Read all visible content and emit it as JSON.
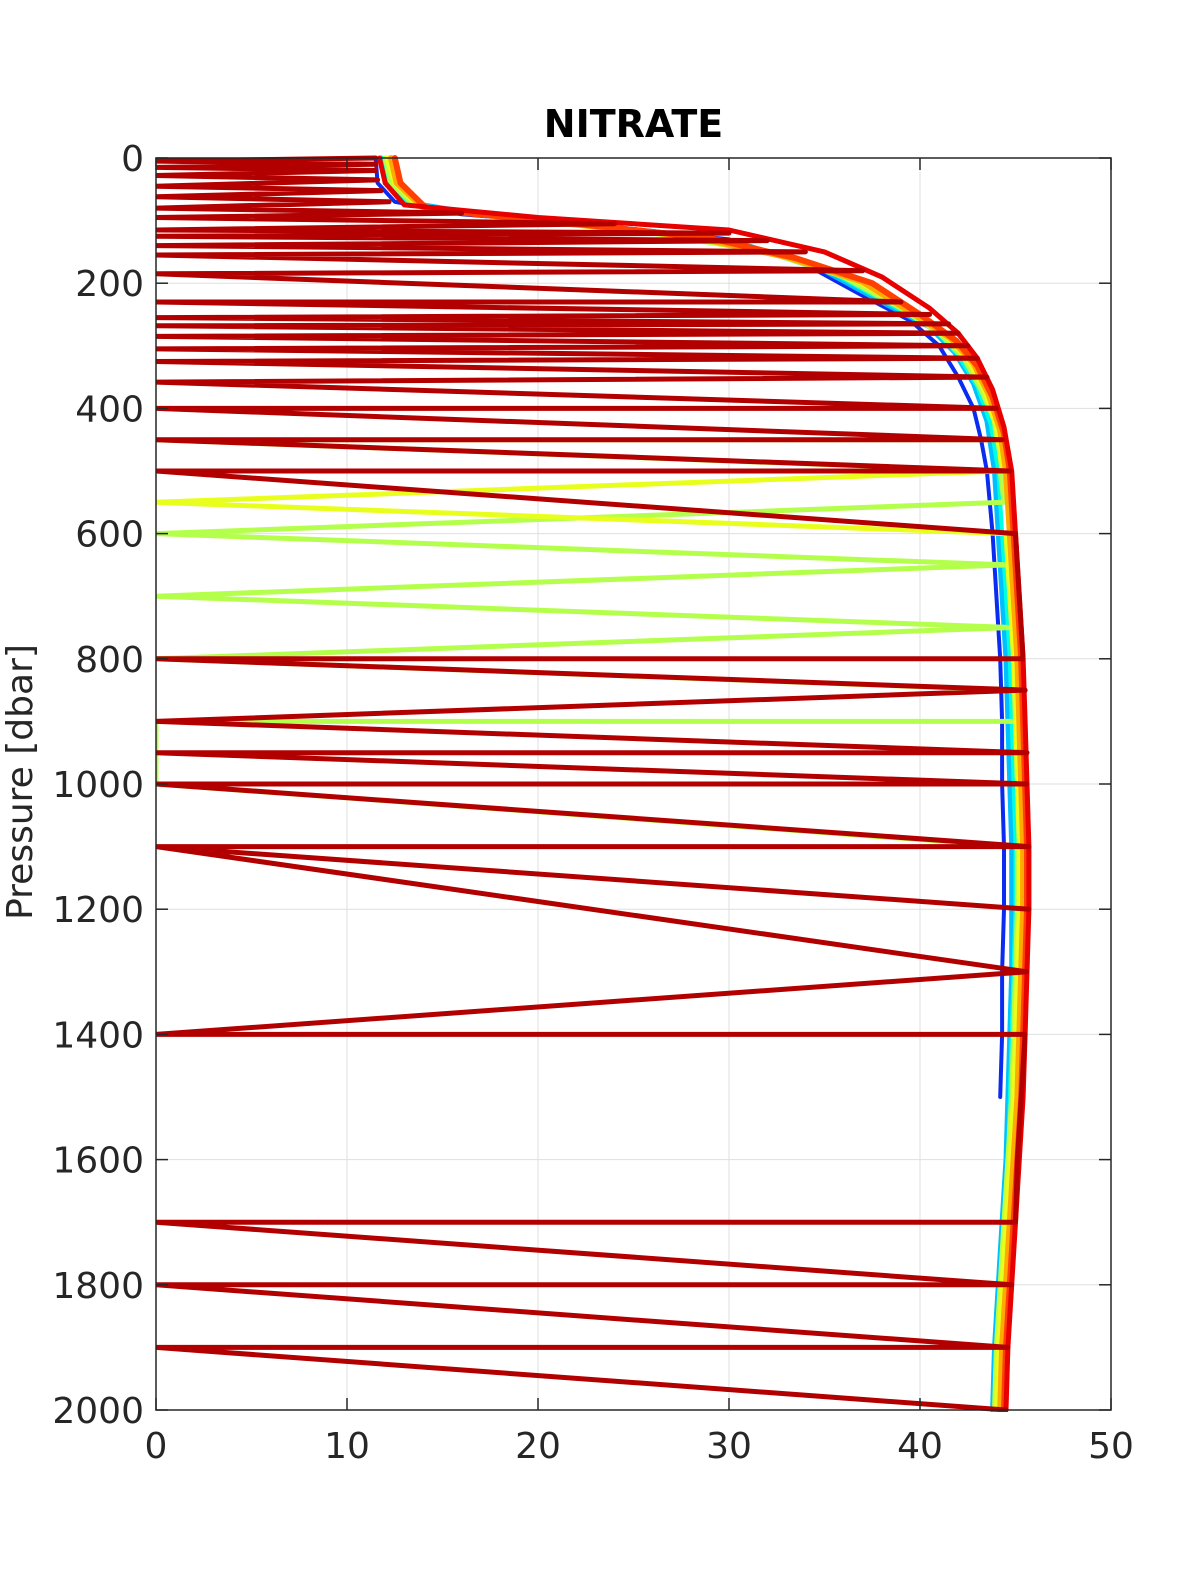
{
  "chart_data": {
    "type": "line",
    "title": "NITRATE",
    "xlabel": "",
    "ylabel": "Pressure [dbar]",
    "xlim": [
      0,
      50
    ],
    "ylim": [
      0,
      2000
    ],
    "y_reversed": true,
    "grid": true,
    "legend": "none",
    "x_ticks": [
      "0",
      "10",
      "20",
      "30",
      "40",
      "50"
    ],
    "y_ticks": [
      "0",
      "200",
      "400",
      "600",
      "800",
      "1000",
      "1200",
      "1400",
      "1600",
      "1800",
      "2000"
    ],
    "x_tick_values": [
      0,
      10,
      20,
      30,
      40,
      50
    ],
    "y_tick_values": [
      0,
      200,
      400,
      600,
      800,
      1000,
      1200,
      1400,
      1600,
      1800,
      2000
    ],
    "colors": {
      "grid": "#dfdfdf",
      "axis": "#262626"
    },
    "series": [
      {
        "color": "#0a2cf0",
        "width": 4,
        "points": [
          [
            11.5,
            0
          ],
          [
            11.6,
            40
          ],
          [
            12.5,
            70
          ],
          [
            16,
            90
          ],
          [
            24,
            110
          ],
          [
            30,
            130
          ],
          [
            34,
            170
          ],
          [
            37,
            220
          ],
          [
            39.5,
            260
          ],
          [
            41,
            300
          ],
          [
            42,
            350
          ],
          [
            42.8,
            400
          ],
          [
            43.2,
            450
          ],
          [
            43.5,
            500
          ],
          [
            43.8,
            600
          ],
          [
            44.0,
            700
          ],
          [
            44.2,
            800
          ],
          [
            44.3,
            900
          ],
          [
            44.3,
            1000
          ],
          [
            44.4,
            1100
          ],
          [
            44.4,
            1200
          ],
          [
            44.3,
            1300
          ],
          [
            44.3,
            1400
          ],
          [
            44.2,
            1500
          ]
        ]
      },
      {
        "color": "#00bfff",
        "width": 5,
        "points": [
          [
            11.8,
            0
          ],
          [
            12,
            40
          ],
          [
            13,
            70
          ],
          [
            17,
            90
          ],
          [
            25,
            115
          ],
          [
            31,
            140
          ],
          [
            35,
            180
          ],
          [
            38,
            230
          ],
          [
            40.5,
            270
          ],
          [
            41.8,
            310
          ],
          [
            42.8,
            360
          ],
          [
            43.5,
            420
          ],
          [
            43.9,
            500
          ],
          [
            44.1,
            600
          ],
          [
            44.3,
            700
          ],
          [
            44.5,
            800
          ],
          [
            44.6,
            900
          ],
          [
            44.7,
            1000
          ],
          [
            44.8,
            1100
          ],
          [
            44.8,
            1200
          ],
          [
            44.8,
            1300
          ],
          [
            44.7,
            1400
          ],
          [
            44.6,
            1500
          ],
          [
            44.5,
            1600
          ],
          [
            44.3,
            1700
          ],
          [
            44.1,
            1800
          ],
          [
            43.9,
            1900
          ],
          [
            43.8,
            2000
          ]
        ]
      },
      {
        "color": "#00ffe0",
        "width": 4,
        "points": [
          [
            11.9,
            0
          ],
          [
            12.2,
            40
          ],
          [
            13.2,
            75
          ],
          [
            18,
            95
          ],
          [
            26,
            118
          ],
          [
            31.5,
            145
          ],
          [
            35.5,
            185
          ],
          [
            38.5,
            235
          ],
          [
            40.8,
            275
          ],
          [
            42,
            315
          ],
          [
            43,
            365
          ],
          [
            43.7,
            425
          ],
          [
            44.1,
            500
          ],
          [
            44.3,
            600
          ],
          [
            44.5,
            700
          ],
          [
            44.7,
            800
          ],
          [
            44.8,
            900
          ],
          [
            44.9,
            1000
          ],
          [
            45.0,
            1100
          ],
          [
            45.0,
            1200
          ],
          [
            44.9,
            1300
          ],
          [
            44.8,
            1400
          ],
          [
            44.7,
            1500
          ],
          [
            44.6,
            1600
          ],
          [
            44.4,
            1700
          ],
          [
            44.2,
            1800
          ],
          [
            44.0,
            1900
          ],
          [
            43.9,
            2000
          ]
        ]
      },
      {
        "color": "#b4ff4b",
        "width": 5,
        "points": [
          [
            12,
            0
          ],
          [
            12.3,
            40
          ],
          [
            13.5,
            75
          ],
          [
            18,
            95
          ],
          [
            26,
            120
          ],
          [
            32,
            150
          ],
          [
            36,
            190
          ],
          [
            39,
            240
          ],
          [
            41,
            280
          ],
          [
            42.3,
            320
          ],
          [
            43.2,
            370
          ],
          [
            43.9,
            420
          ],
          [
            44.0,
            450
          ],
          [
            0,
            450
          ],
          [
            44.2,
            500
          ],
          [
            44.4,
            550
          ],
          [
            0,
            600
          ],
          [
            44.6,
            650
          ],
          [
            0,
            700
          ],
          [
            44.8,
            750
          ],
          [
            0,
            800
          ],
          [
            45.0,
            850
          ],
          [
            45.0,
            900
          ],
          [
            0,
            900
          ],
          [
            0,
            1000
          ],
          [
            45.1,
            1100
          ],
          [
            45.1,
            1200
          ],
          [
            45.0,
            1300
          ],
          [
            44.9,
            1400
          ],
          [
            44.8,
            1500
          ],
          [
            44.6,
            1600
          ],
          [
            44.4,
            1700
          ],
          [
            44.2,
            1800
          ],
          [
            44.0,
            1900
          ],
          [
            43.9,
            2000
          ]
        ]
      },
      {
        "color": "#e8ff1e",
        "width": 5,
        "points": [
          [
            12.1,
            0
          ],
          [
            12.5,
            40
          ],
          [
            13.8,
            78
          ],
          [
            19,
            98
          ],
          [
            27,
            122
          ],
          [
            32.5,
            152
          ],
          [
            36.5,
            192
          ],
          [
            39.3,
            242
          ],
          [
            41.3,
            282
          ],
          [
            42.5,
            322
          ],
          [
            43.4,
            372
          ],
          [
            44.0,
            430
          ],
          [
            44.3,
            500
          ],
          [
            0,
            550
          ],
          [
            44.5,
            600
          ],
          [
            44.7,
            700
          ],
          [
            44.9,
            800
          ],
          [
            45.0,
            900
          ],
          [
            45.1,
            1000
          ],
          [
            45.2,
            1100
          ],
          [
            45.2,
            1200
          ],
          [
            45.1,
            1300
          ],
          [
            45.0,
            1400
          ],
          [
            44.9,
            1500
          ],
          [
            44.7,
            1600
          ],
          [
            44.5,
            1700
          ],
          [
            44.3,
            1800
          ],
          [
            44.1,
            1900
          ],
          [
            44.0,
            2000
          ]
        ]
      },
      {
        "color": "#ffaa00",
        "width": 6,
        "points": [
          [
            12.3,
            0
          ],
          [
            12.6,
            40
          ],
          [
            14,
            80
          ],
          [
            20,
            100
          ],
          [
            28,
            125
          ],
          [
            33,
            158
          ],
          [
            37,
            198
          ],
          [
            39.6,
            248
          ],
          [
            41.6,
            288
          ],
          [
            42.8,
            328
          ],
          [
            43.6,
            378
          ],
          [
            44.2,
            435
          ],
          [
            44.5,
            500
          ],
          [
            44.7,
            600
          ],
          [
            44.9,
            700
          ],
          [
            45.1,
            800
          ],
          [
            45.2,
            900
          ],
          [
            45.3,
            1000
          ],
          [
            45.4,
            1100
          ],
          [
            45.4,
            1200
          ],
          [
            45.3,
            1300
          ],
          [
            45.2,
            1400
          ],
          [
            45.1,
            1500
          ],
          [
            44.9,
            1600
          ],
          [
            44.7,
            1700
          ],
          [
            44.5,
            1800
          ],
          [
            44.3,
            1900
          ],
          [
            44.2,
            2000
          ]
        ]
      },
      {
        "color": "#ff4000",
        "width": 6,
        "points": [
          [
            12.5,
            0
          ],
          [
            12.8,
            40
          ],
          [
            14.2,
            82
          ],
          [
            21,
            102
          ],
          [
            29,
            128
          ],
          [
            33.5,
            160
          ],
          [
            37.5,
            200
          ],
          [
            40,
            250
          ],
          [
            41.9,
            292
          ],
          [
            43,
            332
          ],
          [
            43.8,
            382
          ],
          [
            44.4,
            440
          ],
          [
            44.7,
            500
          ],
          [
            44.9,
            600
          ],
          [
            45.1,
            700
          ],
          [
            45.3,
            800
          ],
          [
            45.4,
            900
          ],
          [
            45.5,
            1000
          ],
          [
            45.6,
            1100
          ],
          [
            45.6,
            1200
          ],
          [
            45.5,
            1300
          ],
          [
            45.4,
            1400
          ],
          [
            45.3,
            1500
          ],
          [
            45.1,
            1600
          ],
          [
            44.9,
            1700
          ],
          [
            44.7,
            1800
          ],
          [
            44.5,
            1900
          ],
          [
            44.4,
            2000
          ]
        ]
      },
      {
        "color": "#e60000",
        "width": 5,
        "points": [
          [
            11.7,
            0
          ],
          [
            12,
            40
          ],
          [
            13,
            75
          ],
          [
            20,
            95
          ],
          [
            30,
            115
          ],
          [
            35,
            150
          ],
          [
            38,
            190
          ],
          [
            40.5,
            240
          ],
          [
            42,
            280
          ],
          [
            43,
            320
          ],
          [
            43.8,
            370
          ],
          [
            44.4,
            430
          ],
          [
            44.8,
            500
          ],
          [
            45.0,
            600
          ],
          [
            45.2,
            700
          ],
          [
            45.4,
            800
          ],
          [
            45.5,
            900
          ],
          [
            45.6,
            1000
          ],
          [
            45.7,
            1100
          ],
          [
            45.7,
            1200
          ],
          [
            45.6,
            1300
          ],
          [
            45.5,
            1400
          ],
          [
            45.4,
            1500
          ],
          [
            45.2,
            1600
          ],
          [
            45.0,
            1700
          ],
          [
            44.8,
            1800
          ],
          [
            44.6,
            1900
          ],
          [
            44.5,
            2000
          ]
        ]
      },
      {
        "color": "#b20000",
        "width": 5,
        "points": [
          [
            11.5,
            0
          ],
          [
            0,
            5
          ],
          [
            11.5,
            10
          ],
          [
            0,
            15
          ],
          [
            11.5,
            20
          ],
          [
            0,
            28
          ],
          [
            11.6,
            35
          ],
          [
            0,
            45
          ],
          [
            11.8,
            52
          ],
          [
            0,
            62
          ],
          [
            12.2,
            70
          ],
          [
            0,
            80
          ],
          [
            16,
            88
          ],
          [
            0,
            95
          ],
          [
            24,
            105
          ],
          [
            0,
            115
          ],
          [
            30,
            120
          ],
          [
            0,
            125
          ],
          [
            32,
            132
          ],
          [
            0,
            140
          ],
          [
            34,
            150
          ],
          [
            0,
            155
          ],
          [
            37,
            180
          ],
          [
            0,
            185
          ],
          [
            39,
            230
          ],
          [
            0,
            230
          ],
          [
            40.5,
            250
          ],
          [
            0,
            255
          ],
          [
            41.5,
            265
          ],
          [
            0,
            268
          ],
          [
            42,
            280
          ],
          [
            0,
            285
          ],
          [
            42.5,
            300
          ],
          [
            0,
            305
          ],
          [
            43,
            320
          ],
          [
            0,
            325
          ],
          [
            43.5,
            350
          ],
          [
            0,
            358
          ],
          [
            44,
            400
          ],
          [
            0,
            400
          ],
          [
            44.3,
            450
          ],
          [
            0,
            450
          ],
          [
            44.7,
            500
          ],
          [
            0,
            500
          ],
          [
            45.0,
            600
          ],
          [
            45.2,
            700
          ],
          [
            45.4,
            800
          ],
          [
            0,
            800
          ],
          [
            45.5,
            850
          ],
          [
            0,
            900
          ],
          [
            45.6,
            950
          ],
          [
            0,
            950
          ],
          [
            45.6,
            1000
          ],
          [
            0,
            1000
          ],
          [
            45.7,
            1100
          ],
          [
            0,
            1100
          ],
          [
            45.7,
            1200
          ],
          [
            0,
            1100
          ],
          [
            45.6,
            1300
          ],
          [
            0,
            1400
          ],
          [
            45.5,
            1400
          ],
          [
            45.3,
            1500
          ],
          [
            45.1,
            1600
          ],
          [
            45.0,
            1700
          ],
          [
            0,
            1700
          ],
          [
            44.8,
            1800
          ],
          [
            0,
            1800
          ],
          [
            44.6,
            1900
          ],
          [
            0,
            1900
          ],
          [
            44.5,
            2000
          ]
        ]
      }
    ]
  }
}
